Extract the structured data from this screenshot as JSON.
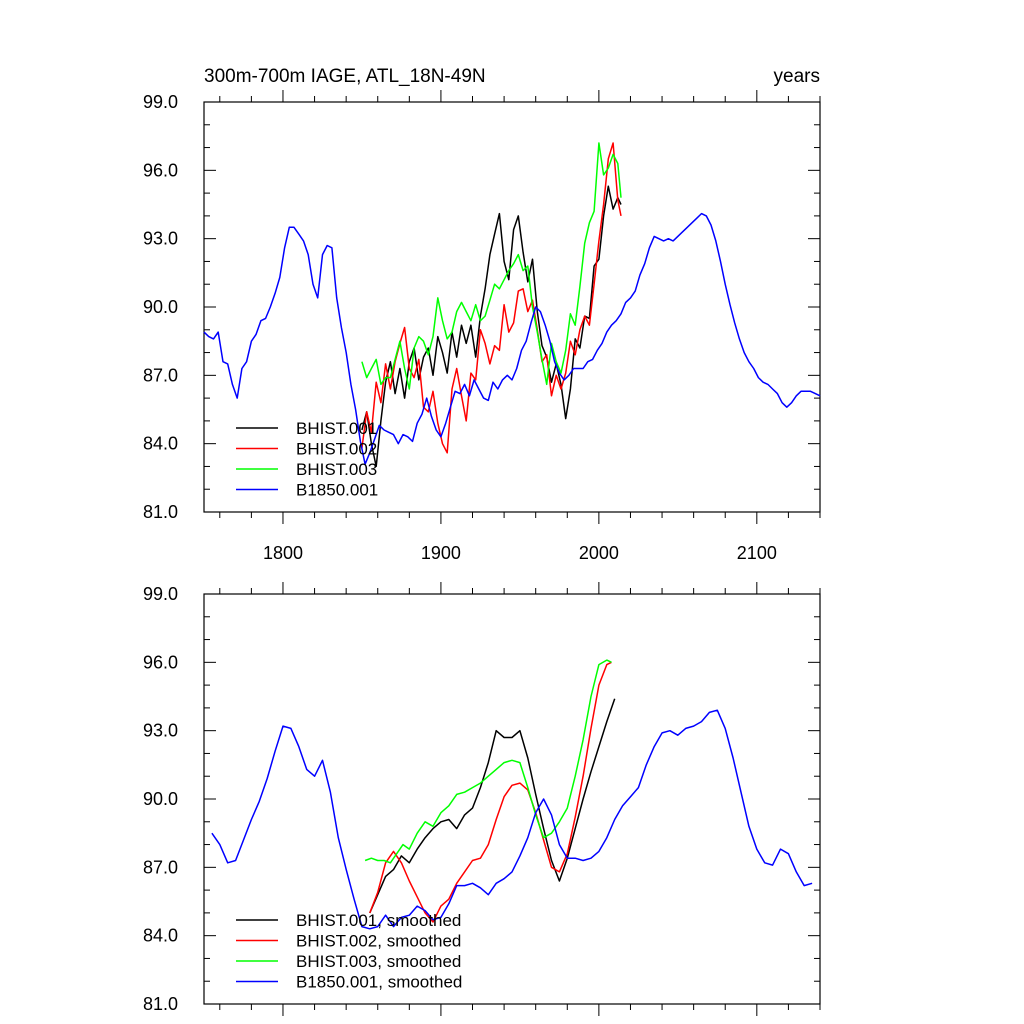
{
  "chart_data": [
    {
      "type": "line",
      "title_left": "300m-700m IAGE, ATL_18N-49N",
      "title_right": "years",
      "xlabel": "",
      "ylabel": "",
      "xlim": [
        1750,
        2140
      ],
      "ylim": [
        81,
        99
      ],
      "xticks": [
        1800,
        1900,
        2000,
        2100
      ],
      "xtick_labels": [
        "1800",
        "1900",
        "2000",
        "2100"
      ],
      "yticks": [
        81,
        84,
        87,
        90,
        93,
        96,
        99
      ],
      "ytick_labels": [
        "81.0",
        "84.0",
        "87.0",
        "90.0",
        "93.0",
        "96.0",
        "99.0"
      ],
      "legend_position": "bottom-left",
      "grid": false,
      "series": [
        {
          "name": "BHIST.001",
          "color": "#000000",
          "x": [
            1850,
            1853,
            1856,
            1859,
            1862,
            1865,
            1868,
            1871,
            1874,
            1877,
            1880,
            1883,
            1886,
            1889,
            1892,
            1895,
            1898,
            1901,
            1904,
            1907,
            1910,
            1913,
            1916,
            1919,
            1922,
            1925,
            1928,
            1931,
            1934,
            1937,
            1940,
            1943,
            1946,
            1949,
            1952,
            1955,
            1958,
            1961,
            1964,
            1967,
            1970,
            1973,
            1976,
            1979,
            1982,
            1985,
            1988,
            1991,
            1994,
            1997,
            2000,
            2003,
            2006,
            2009,
            2012,
            2014
          ],
          "y": [
            84.6,
            85.4,
            84.0,
            83.0,
            85.0,
            86.7,
            87.6,
            86.2,
            87.3,
            86.0,
            87.6,
            88.2,
            86.8,
            87.8,
            88.2,
            87.0,
            88.7,
            88.0,
            87.1,
            88.9,
            87.8,
            89.2,
            88.4,
            89.2,
            87.8,
            89.6,
            90.8,
            92.3,
            93.2,
            94.1,
            92.0,
            91.2,
            93.4,
            94.0,
            92.4,
            91.1,
            92.1,
            89.8,
            88.3,
            87.8,
            86.7,
            87.5,
            86.6,
            85.1,
            86.4,
            88.6,
            88.2,
            89.6,
            89.5,
            91.8,
            92.1,
            94.0,
            95.3,
            94.3,
            94.8,
            94.5
          ]
        },
        {
          "name": "BHIST.002",
          "color": "#ff0000",
          "x": [
            1850,
            1853,
            1856,
            1859,
            1862,
            1865,
            1868,
            1871,
            1874,
            1877,
            1880,
            1883,
            1886,
            1889,
            1892,
            1895,
            1898,
            1901,
            1904,
            1907,
            1910,
            1913,
            1916,
            1919,
            1922,
            1925,
            1928,
            1931,
            1934,
            1937,
            1940,
            1943,
            1946,
            1949,
            1952,
            1955,
            1958,
            1961,
            1964,
            1967,
            1970,
            1973,
            1976,
            1979,
            1982,
            1985,
            1988,
            1991,
            1994,
            1997,
            2000,
            2003,
            2006,
            2009,
            2012,
            2014
          ],
          "y": [
            83.8,
            85.4,
            84.5,
            86.7,
            85.8,
            87.5,
            86.4,
            87.6,
            88.4,
            89.1,
            87.3,
            86.9,
            87.7,
            85.6,
            85.4,
            86.3,
            84.9,
            84.0,
            83.6,
            86.4,
            87.3,
            86.1,
            85.0,
            87.1,
            86.8,
            89.0,
            88.4,
            87.5,
            88.3,
            88.1,
            90.1,
            88.9,
            89.3,
            90.7,
            90.8,
            89.8,
            90.3,
            89.0,
            87.6,
            87.9,
            86.1,
            87.0,
            86.4,
            87.1,
            88.5,
            87.9,
            89.0,
            89.6,
            89.2,
            91.0,
            92.9,
            94.5,
            96.5,
            97.2,
            94.7,
            94.0
          ]
        },
        {
          "name": "BHIST.003",
          "color": "#00ff00",
          "x": [
            1850,
            1853,
            1856,
            1859,
            1862,
            1865,
            1868,
            1871,
            1874,
            1877,
            1880,
            1883,
            1886,
            1889,
            1892,
            1895,
            1898,
            1901,
            1904,
            1907,
            1910,
            1913,
            1916,
            1919,
            1922,
            1925,
            1928,
            1931,
            1934,
            1937,
            1940,
            1943,
            1946,
            1949,
            1952,
            1955,
            1958,
            1961,
            1964,
            1967,
            1970,
            1973,
            1976,
            1979,
            1982,
            1985,
            1988,
            1991,
            1994,
            1997,
            2000,
            2003,
            2006,
            2009,
            2012,
            2014
          ],
          "y": [
            87.6,
            86.9,
            87.3,
            87.7,
            86.6,
            86.9,
            86.9,
            87.7,
            88.5,
            87.3,
            86.4,
            88.2,
            88.7,
            88.5,
            87.9,
            88.7,
            90.4,
            89.4,
            88.6,
            88.9,
            89.8,
            90.2,
            89.8,
            89.4,
            90.1,
            89.4,
            89.6,
            90.3,
            91.0,
            90.8,
            91.2,
            91.6,
            91.9,
            92.3,
            91.6,
            91.8,
            90.0,
            88.9,
            87.7,
            86.6,
            88.4,
            87.6,
            87.1,
            88.1,
            89.7,
            89.2,
            90.9,
            92.8,
            93.7,
            94.2,
            97.2,
            95.8,
            96.1,
            96.7,
            96.3,
            94.8
          ]
        },
        {
          "name": "B1850.001",
          "color": "#0000ff",
          "x": [
            1750,
            1753,
            1756,
            1759,
            1762,
            1765,
            1768,
            1771,
            1774,
            1777,
            1780,
            1783,
            1786,
            1789,
            1792,
            1795,
            1798,
            1801,
            1804,
            1807,
            1810,
            1813,
            1816,
            1819,
            1822,
            1825,
            1828,
            1831,
            1834,
            1837,
            1840,
            1843,
            1846,
            1849,
            1852,
            1855,
            1858,
            1861,
            1864,
            1867,
            1870,
            1873,
            1876,
            1879,
            1882,
            1885,
            1888,
            1891,
            1894,
            1897,
            1900,
            1903,
            1906,
            1909,
            1912,
            1915,
            1918,
            1921,
            1924,
            1927,
            1930,
            1933,
            1936,
            1939,
            1942,
            1945,
            1948,
            1951,
            1954,
            1957,
            1960,
            1963,
            1966,
            1969,
            1972,
            1975,
            1978,
            1981,
            1984,
            1987,
            1990,
            1993,
            1996,
            1999,
            2002,
            2005,
            2008,
            2011,
            2014,
            2017,
            2020,
            2023,
            2026,
            2029,
            2032,
            2035,
            2038,
            2041,
            2044,
            2047,
            2050,
            2053,
            2056,
            2059,
            2062,
            2065,
            2068,
            2071,
            2074,
            2077,
            2080,
            2083,
            2086,
            2089,
            2092,
            2095,
            2098,
            2101,
            2104,
            2107,
            2110,
            2113,
            2116,
            2119,
            2122,
            2125,
            2128,
            2131,
            2134,
            2137,
            2140
          ],
          "y": [
            88.9,
            88.7,
            88.6,
            88.9,
            87.6,
            87.5,
            86.6,
            86.0,
            87.3,
            87.6,
            88.5,
            88.8,
            89.4,
            89.5,
            90.0,
            90.6,
            91.3,
            92.6,
            93.5,
            93.5,
            93.2,
            92.9,
            92.3,
            91.0,
            90.4,
            92.3,
            92.7,
            92.6,
            90.4,
            89.1,
            88.0,
            86.6,
            85.5,
            84.1,
            83.1,
            83.6,
            84.2,
            84.8,
            84.6,
            84.5,
            84.4,
            84.0,
            84.4,
            84.3,
            84.1,
            84.9,
            85.3,
            86.0,
            85.2,
            84.6,
            84.3,
            84.9,
            85.6,
            86.3,
            86.2,
            86.6,
            86.1,
            86.8,
            86.4,
            86.0,
            85.9,
            86.7,
            86.4,
            86.8,
            87.0,
            86.8,
            87.3,
            88.1,
            88.5,
            89.3,
            90.0,
            89.8,
            89.2,
            88.5,
            87.6,
            87.1,
            86.8,
            87.0,
            87.3,
            87.3,
            87.3,
            87.6,
            87.7,
            88.1,
            88.4,
            88.9,
            89.2,
            89.4,
            89.7,
            90.2,
            90.4,
            90.7,
            91.4,
            91.9,
            92.6,
            93.1,
            93.0,
            92.9,
            93.0,
            92.9,
            93.1,
            93.3,
            93.5,
            93.7,
            93.9,
            94.1,
            94.0,
            93.6,
            92.9,
            92.0,
            91.0,
            90.1,
            89.3,
            88.6,
            88.0,
            87.6,
            87.3,
            86.9,
            86.7,
            86.6,
            86.4,
            86.2,
            85.8,
            85.6,
            85.8,
            86.1,
            86.3,
            86.3,
            86.3,
            86.2,
            86.1
          ]
        }
      ]
    },
    {
      "type": "line",
      "title_left": "",
      "title_right": "",
      "xlabel": "",
      "ylabel": "",
      "xlim": [
        1750,
        2140
      ],
      "ylim": [
        81,
        99
      ],
      "xticks": [
        1800,
        1900,
        2000,
        2100
      ],
      "xtick_labels": [
        "",
        "",
        "",
        ""
      ],
      "yticks": [
        81,
        84,
        87,
        90,
        93,
        96,
        99
      ],
      "ytick_labels": [
        "81.0",
        "84.0",
        "87.0",
        "90.0",
        "93.0",
        "96.0",
        "99.0"
      ],
      "legend_position": "bottom-left",
      "grid": false,
      "series": [
        {
          "name": "BHIST.001, smoothed",
          "color": "#000000",
          "x": [
            1855,
            1860,
            1865,
            1870,
            1875,
            1880,
            1885,
            1890,
            1895,
            1900,
            1905,
            1910,
            1915,
            1920,
            1925,
            1930,
            1935,
            1940,
            1945,
            1950,
            1955,
            1960,
            1965,
            1970,
            1975,
            1980,
            1985,
            1990,
            1995,
            2000,
            2005,
            2010
          ],
          "y": [
            85.0,
            85.8,
            86.6,
            86.9,
            87.5,
            87.2,
            87.8,
            88.3,
            88.7,
            89.0,
            89.1,
            88.7,
            89.3,
            89.6,
            90.5,
            91.6,
            93.0,
            92.7,
            92.7,
            93.0,
            91.8,
            90.2,
            88.7,
            87.3,
            86.4,
            87.4,
            88.7,
            90.0,
            91.2,
            92.3,
            93.4,
            94.4
          ]
        },
        {
          "name": "BHIST.002, smoothed",
          "color": "#ff0000",
          "x": [
            1855,
            1860,
            1865,
            1870,
            1875,
            1880,
            1885,
            1890,
            1895,
            1900,
            1905,
            1910,
            1915,
            1920,
            1925,
            1930,
            1935,
            1940,
            1945,
            1950,
            1955,
            1960,
            1965,
            1970,
            1975,
            1980,
            1985,
            1990,
            1995,
            2000,
            2005,
            2008
          ],
          "y": [
            85.0,
            85.9,
            87.2,
            87.7,
            87.2,
            86.4,
            85.7,
            85.0,
            84.6,
            85.3,
            85.6,
            86.3,
            86.8,
            87.3,
            87.4,
            88.0,
            89.1,
            90.1,
            90.6,
            90.7,
            90.4,
            89.4,
            88.2,
            87.0,
            86.8,
            87.6,
            89.2,
            91.0,
            93.1,
            95.0,
            95.9,
            96.0
          ]
        },
        {
          "name": "BHIST.003, smoothed",
          "color": "#00ff00",
          "x": [
            1852,
            1856,
            1860,
            1864,
            1868,
            1872,
            1876,
            1880,
            1885,
            1890,
            1895,
            1900,
            1905,
            1910,
            1915,
            1920,
            1925,
            1930,
            1935,
            1940,
            1945,
            1950,
            1955,
            1960,
            1965,
            1970,
            1975,
            1980,
            1985,
            1990,
            1995,
            2000,
            2005,
            2008
          ],
          "y": [
            87.3,
            87.4,
            87.3,
            87.3,
            87.2,
            87.6,
            88.0,
            87.8,
            88.5,
            89.0,
            88.8,
            89.4,
            89.7,
            90.2,
            90.3,
            90.5,
            90.7,
            91.0,
            91.3,
            91.6,
            91.7,
            91.6,
            90.5,
            89.3,
            88.3,
            88.5,
            89.0,
            89.6,
            91.0,
            92.6,
            94.5,
            95.9,
            96.1,
            96.0
          ]
        },
        {
          "name": "B1850.001, smoothed",
          "color": "#0000ff",
          "x": [
            1755,
            1760,
            1765,
            1770,
            1775,
            1780,
            1785,
            1790,
            1795,
            1800,
            1805,
            1810,
            1815,
            1820,
            1825,
            1830,
            1835,
            1840,
            1845,
            1850,
            1855,
            1860,
            1865,
            1870,
            1875,
            1880,
            1885,
            1890,
            1895,
            1900,
            1905,
            1910,
            1915,
            1920,
            1925,
            1930,
            1935,
            1940,
            1945,
            1950,
            1955,
            1960,
            1965,
            1970,
            1975,
            1980,
            1985,
            1990,
            1995,
            2000,
            2005,
            2010,
            2015,
            2020,
            2025,
            2030,
            2035,
            2040,
            2045,
            2050,
            2055,
            2060,
            2065,
            2070,
            2075,
            2080,
            2085,
            2090,
            2095,
            2100,
            2105,
            2110,
            2115,
            2120,
            2125,
            2130,
            2135
          ],
          "y": [
            88.5,
            88.0,
            87.2,
            87.3,
            88.2,
            89.1,
            89.9,
            90.9,
            92.1,
            93.2,
            93.1,
            92.3,
            91.3,
            91.0,
            91.7,
            90.3,
            88.3,
            86.9,
            85.6,
            84.4,
            84.3,
            84.4,
            84.9,
            84.4,
            84.8,
            84.9,
            85.3,
            85.1,
            84.7,
            84.8,
            85.4,
            86.2,
            86.2,
            86.3,
            86.1,
            85.8,
            86.3,
            86.5,
            86.8,
            87.5,
            88.3,
            89.4,
            90.0,
            89.3,
            88.0,
            87.4,
            87.4,
            87.3,
            87.4,
            87.7,
            88.3,
            89.1,
            89.7,
            90.1,
            90.5,
            91.5,
            92.3,
            92.9,
            93.0,
            92.8,
            93.1,
            93.2,
            93.4,
            93.8,
            93.9,
            93.1,
            91.8,
            90.3,
            88.8,
            87.8,
            87.2,
            87.1,
            87.8,
            87.6,
            86.8,
            86.2,
            86.3
          ]
        }
      ]
    }
  ]
}
